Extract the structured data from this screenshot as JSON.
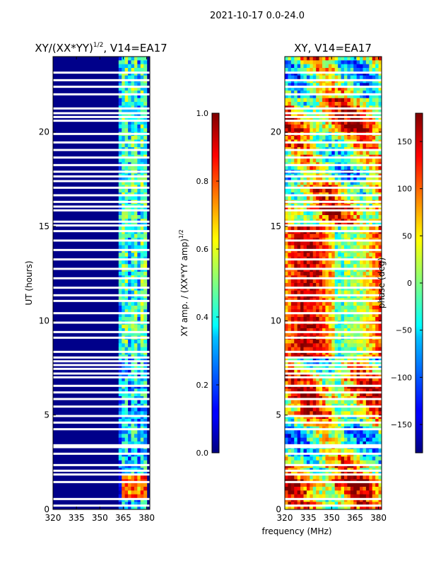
{
  "figure": {
    "suptitle": "2021-10-17 0.0-24.0",
    "shared_xlabel": "frequency (MHz)"
  },
  "chart_data": [
    {
      "type": "heatmap",
      "title_main": "XY/(XX*YY)",
      "title_sup": "1/2",
      "title_tail": ", V14=EA17",
      "xlabel": "frequency (MHz)",
      "ylabel": "UT (hours)",
      "xlim": [
        320,
        382
      ],
      "ylim": [
        0,
        24
      ],
      "xticks": [
        320,
        335,
        350,
        365,
        380
      ],
      "yticks": [
        0,
        5,
        10,
        15,
        20
      ],
      "colormap": "jet",
      "colorbar": {
        "label_main": "XY amp. / (XX*YY amp)",
        "label_sup": "1/2",
        "range": [
          0.0,
          1.0
        ],
        "ticks": [
          "0.0",
          "0.2",
          "0.4",
          "0.6",
          "0.8",
          "1.0"
        ],
        "tick_values": [
          0.0,
          0.2,
          0.4,
          0.6,
          0.8,
          1.0
        ]
      },
      "signal_band_mhz": [
        363,
        380
      ],
      "band_level": 0.45,
      "hot_block_hours": [
        0.6,
        1.7
      ]
    },
    {
      "type": "heatmap",
      "title": "XY, V14=EA17",
      "xlabel": "frequency (MHz)",
      "ylabel": "",
      "xlim": [
        320,
        382
      ],
      "ylim": [
        0,
        24
      ],
      "xticks": [
        320,
        335,
        350,
        365,
        380
      ],
      "yticks": [
        0,
        5,
        10,
        15,
        20
      ],
      "colormap": "jet",
      "colorbar": {
        "label": "phase (deg)",
        "range": [
          -180,
          180
        ],
        "ticks": [
          "150",
          "100",
          "50",
          "0",
          "−50",
          "−100",
          "−150"
        ],
        "tick_values": [
          150,
          100,
          50,
          0,
          -50,
          -100,
          -150
        ]
      }
    }
  ],
  "data_gaps_hours": [
    0.2,
    0.55,
    1.45,
    1.85,
    2.05,
    2.35,
    2.95,
    3.3,
    3.4,
    4.25,
    4.6,
    4.95,
    5.45,
    5.85,
    6.2,
    6.55,
    7.0,
    7.2,
    7.45,
    7.65,
    7.85,
    8.05,
    8.35,
    9.1,
    9.4,
    9.9,
    10.4,
    11.05,
    11.35,
    11.75,
    12.25,
    12.75,
    13.25,
    13.75,
    14.25,
    14.75,
    15.05,
    15.25,
    15.85,
    16.05,
    16.3,
    16.65,
    17.05,
    17.4,
    17.65,
    17.9,
    18.25,
    18.65,
    19.05,
    19.45,
    19.9,
    20.6,
    20.8,
    21.0,
    21.25,
    22.0,
    22.4,
    22.75,
    23.15
  ]
}
